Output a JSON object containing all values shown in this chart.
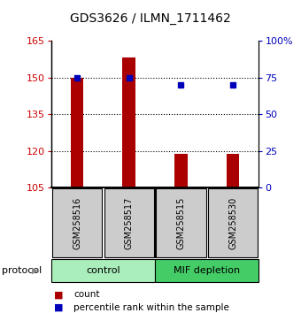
{
  "title": "GDS3626 / ILMN_1711462",
  "samples": [
    "GSM258516",
    "GSM258517",
    "GSM258515",
    "GSM258530"
  ],
  "bar_values": [
    150,
    158,
    119,
    119
  ],
  "percentile_values": [
    75,
    75,
    70,
    70
  ],
  "bar_color": "#AA0000",
  "percentile_color": "#0000BB",
  "left_ylim": [
    105,
    165
  ],
  "left_yticks": [
    105,
    120,
    135,
    150,
    165
  ],
  "right_ylim": [
    0,
    100
  ],
  "right_yticks": [
    0,
    25,
    50,
    75,
    100
  ],
  "right_yticklabels": [
    "0",
    "25",
    "50",
    "75",
    "100%"
  ],
  "gridlines_at": [
    120,
    135,
    150
  ],
  "groups": [
    {
      "label": "control",
      "start": 0,
      "end": 2,
      "color": "#AAEEBB"
    },
    {
      "label": "MIF depletion",
      "start": 2,
      "end": 4,
      "color": "#44CC66"
    }
  ],
  "group_label": "protocol",
  "legend_count_label": "count",
  "legend_pct_label": "percentile rank within the sample",
  "sample_box_color": "#CCCCCC",
  "background_color": "#FFFFFF",
  "bar_width": 0.25
}
